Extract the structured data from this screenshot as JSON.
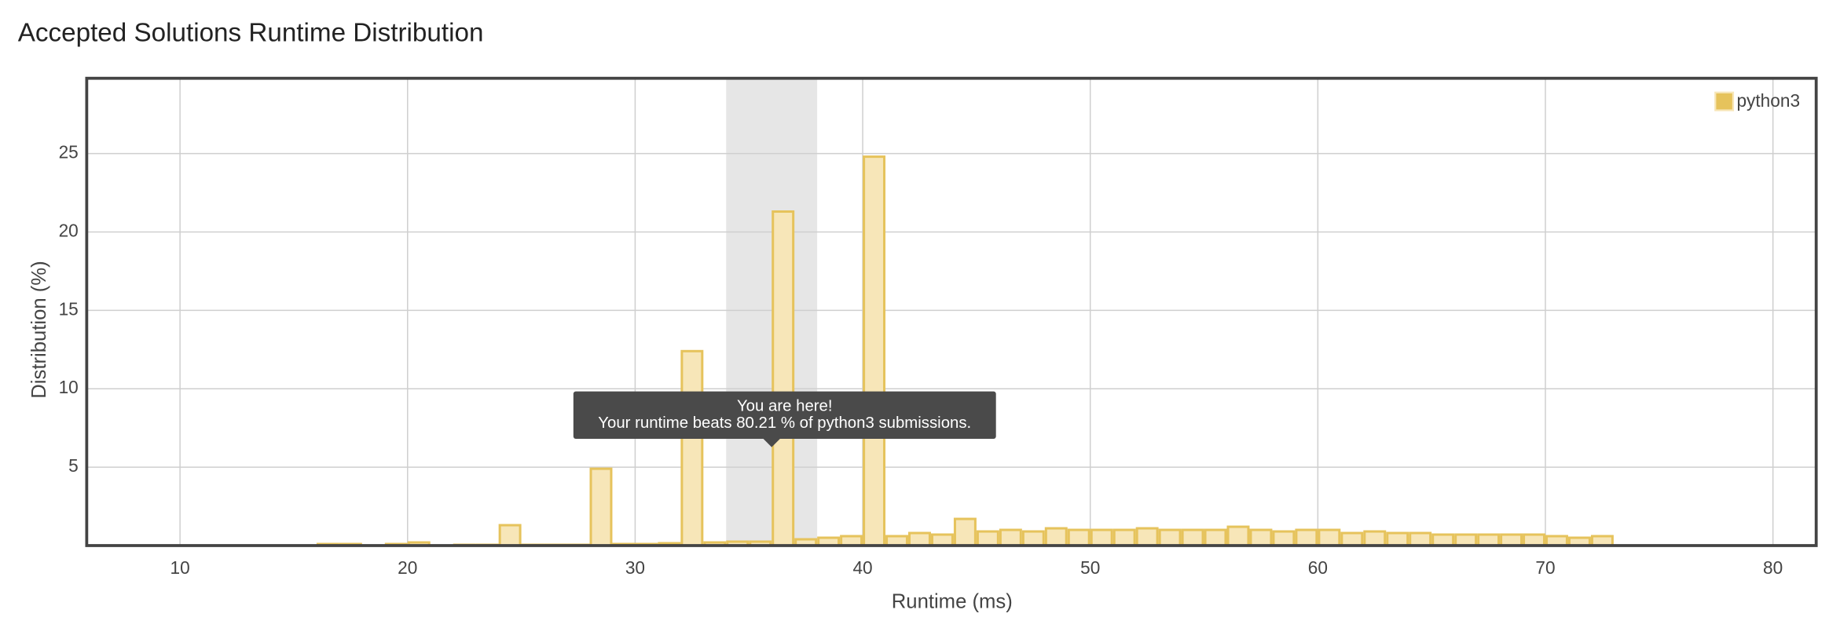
{
  "chart_data": {
    "type": "histogram",
    "title": "Accepted Solutions Runtime Distribution",
    "x_label": "Runtime (ms)",
    "y_label": "Distribution (%)",
    "bins": [
      16,
      17,
      18,
      19,
      20,
      21,
      22,
      23,
      24,
      25,
      26,
      27,
      28,
      29,
      30,
      31,
      32,
      33,
      34,
      35,
      36,
      37,
      38,
      39,
      40,
      41,
      42,
      43,
      44,
      45,
      46,
      47,
      48,
      49,
      50,
      51,
      52,
      53,
      54,
      55,
      56,
      57,
      58,
      59,
      60,
      61,
      62,
      63,
      64,
      65,
      66,
      67,
      68,
      69,
      70,
      71,
      72,
      73
    ],
    "series": [
      {
        "name": "python3",
        "color": "#e6c35c",
        "fill": "#f7e6b8",
        "values": [
          0.1,
          0.1,
          0,
          0.1,
          0.2,
          0,
          0.05,
          0.05,
          1.3,
          0.05,
          0.05,
          0.05,
          4.9,
          0.1,
          0.1,
          0.15,
          12.4,
          0.2,
          0.25,
          0.25,
          21.3,
          0.4,
          0.5,
          0.6,
          24.8,
          0.6,
          0.8,
          0.7,
          1.7,
          0.9,
          1.0,
          0.9,
          1.1,
          1.0,
          1.0,
          1.0,
          1.1,
          1.0,
          1.0,
          1.0,
          1.2,
          1.0,
          0.9,
          1.0,
          1.0,
          0.8,
          0.9,
          0.8,
          0.8,
          0.7,
          0.7,
          0.7,
          0.7,
          0.7,
          0.6,
          0.5,
          0.6,
          0.4
        ]
      }
    ],
    "highlight": [
      34,
      38
    ],
    "tooltip": {
      "title": "You are here!",
      "text": "Your runtime beats 80.21 % of python3 submissions."
    },
    "xlim": [
      5.9,
      81.9
    ],
    "xticks": [
      10,
      20,
      30,
      40,
      50,
      60,
      70,
      80
    ],
    "ylim": [
      0,
      29.8
    ],
    "yticks": [
      5,
      10,
      15,
      20,
      25
    ],
    "grid": true,
    "legend": "top-right"
  }
}
